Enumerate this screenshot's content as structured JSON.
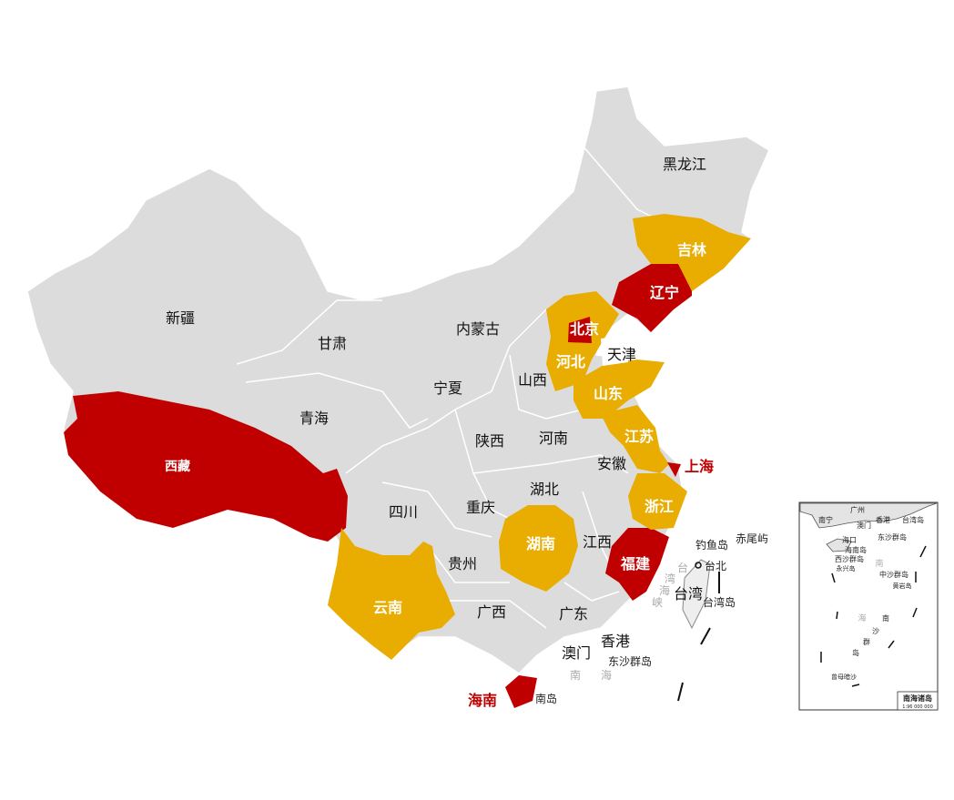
{
  "colors": {
    "base": "#dcdcdc",
    "gold": "#e8ad00",
    "red": "#c00000",
    "taiwan": "#eeeeee"
  },
  "provinces": [
    {
      "name": "黑龙江",
      "status": "base"
    },
    {
      "name": "吉林",
      "status": "gold"
    },
    {
      "name": "辽宁",
      "status": "red"
    },
    {
      "name": "新疆",
      "status": "base"
    },
    {
      "name": "内蒙古",
      "status": "base"
    },
    {
      "name": "北京",
      "status": "red"
    },
    {
      "name": "天津",
      "status": "none"
    },
    {
      "name": "甘肃",
      "status": "base"
    },
    {
      "name": "河北",
      "status": "gold"
    },
    {
      "name": "宁夏",
      "status": "base"
    },
    {
      "name": "山西",
      "status": "base"
    },
    {
      "name": "山东",
      "status": "gold"
    },
    {
      "name": "青海",
      "status": "base"
    },
    {
      "name": "陕西",
      "status": "base"
    },
    {
      "name": "河南",
      "status": "base"
    },
    {
      "name": "江苏",
      "status": "gold"
    },
    {
      "name": "西藏",
      "status": "red"
    },
    {
      "name": "安徽",
      "status": "base"
    },
    {
      "name": "上海",
      "status": "red"
    },
    {
      "name": "湖北",
      "status": "base"
    },
    {
      "name": "四川",
      "status": "base"
    },
    {
      "name": "重庆",
      "status": "base"
    },
    {
      "name": "浙江",
      "status": "gold"
    },
    {
      "name": "湖南",
      "status": "gold"
    },
    {
      "name": "江西",
      "status": "base"
    },
    {
      "name": "福建",
      "status": "red"
    },
    {
      "name": "贵州",
      "status": "base"
    },
    {
      "name": "台湾",
      "status": "base"
    },
    {
      "name": "云南",
      "status": "gold"
    },
    {
      "name": "广西",
      "status": "base"
    },
    {
      "name": "广东",
      "status": "base"
    },
    {
      "name": "香港",
      "status": "base"
    },
    {
      "name": "澳门",
      "status": "base"
    },
    {
      "name": "海南",
      "status": "red"
    }
  ],
  "places": {
    "dongsha": "东沙群岛",
    "nanhai_1": "南",
    "nanhai_2": "海",
    "hainan_dao": "南岛",
    "diaoyu": "钓鱼岛",
    "chiwei": "赤尾屿",
    "taibei": "台北",
    "taiwan_dao": "台湾岛",
    "strait": [
      "台",
      "湾",
      "海",
      "峡"
    ]
  },
  "inset": {
    "title": "南海诸岛",
    "scale": "1:96 000 000",
    "labels": {
      "nanning": "南宁",
      "guangzhou": "广州",
      "aomen": "澳门",
      "xianggang": "香港",
      "taiwan_dao": "台湾岛",
      "haikou": "海口",
      "dongsha": "东沙群岛",
      "hainan_dao": "海南岛",
      "xisha": "西沙群岛",
      "yongxing": "永兴岛",
      "zhongsha": "中沙群岛",
      "huangyan": "黄岩岛",
      "nansha": [
        "南",
        "沙",
        "群",
        "岛"
      ],
      "sea": [
        "南",
        "海"
      ],
      "zengmu": "曾母暗沙"
    }
  }
}
